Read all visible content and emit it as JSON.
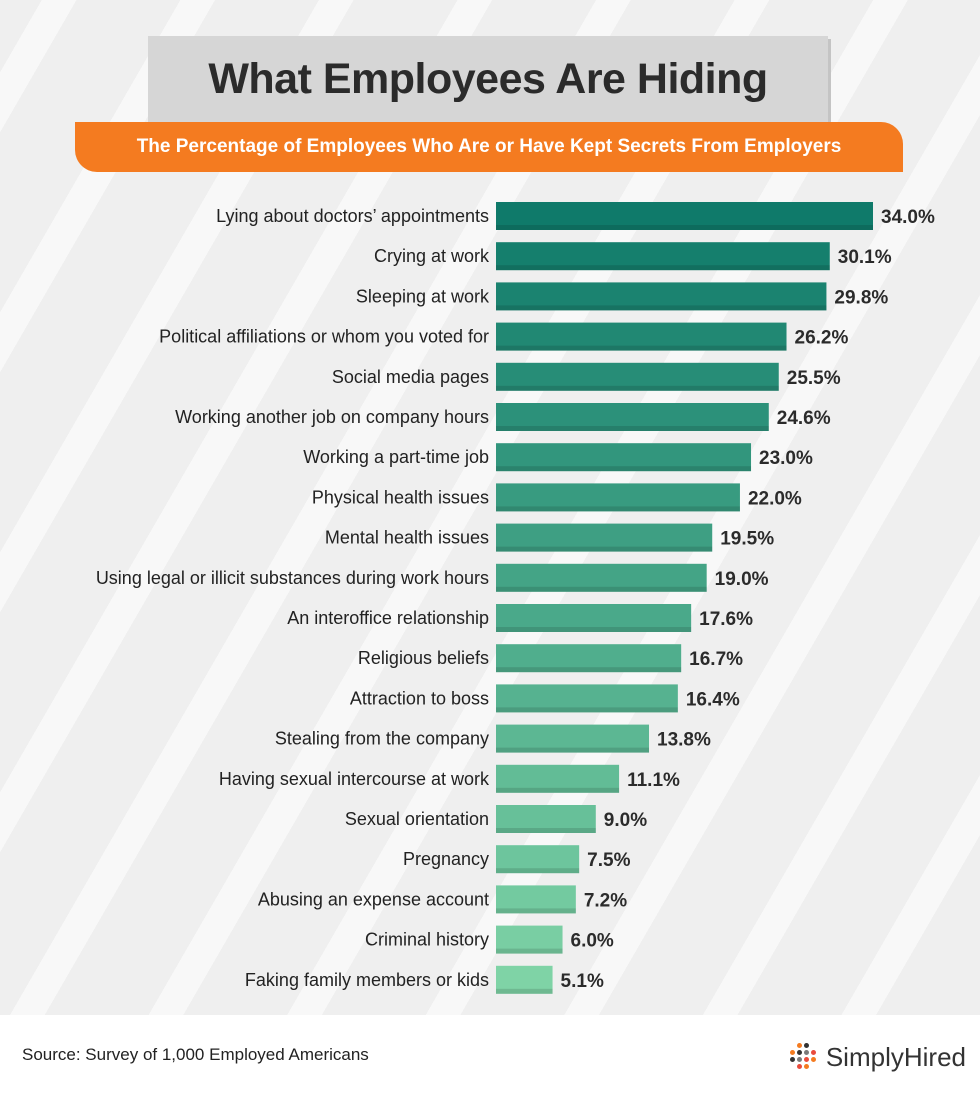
{
  "title": "What Employees Are Hiding",
  "subtitle": "The Percentage of Employees Who Are or Have Kept Secrets From Employers",
  "source": "Source: Survey of 1,000 Employed Americans",
  "logo_text": "SimplyHired",
  "logo_icon": "simplyhired-dots-icon",
  "colors": {
    "title_bg": "#d6d6d6",
    "subtitle_bg": "#f47b20",
    "bar_dark": "#0f7a6a",
    "bar_light": "#7fd3a6"
  },
  "chart_data": {
    "type": "bar",
    "orientation": "horizontal",
    "title": "What Employees Are Hiding",
    "subtitle": "The Percentage of Employees Who Are or Have Kept Secrets From Employers",
    "categories": [
      "Lying about doctors’ appointments",
      "Crying at work",
      "Sleeping at work",
      "Political affiliations or whom you voted for",
      "Social media pages",
      "Working another job on company hours",
      "Working a part-time job",
      "Physical health issues",
      "Mental health issues",
      "Using legal or illicit substances during work hours",
      "An interoffice relationship",
      "Religious beliefs",
      "Attraction to boss",
      "Stealing from the company",
      "Having sexual intercourse at work",
      "Sexual orientation",
      "Pregnancy",
      "Abusing an expense account",
      "Criminal history",
      "Faking family members or kids"
    ],
    "values": [
      34.0,
      30.1,
      29.8,
      26.2,
      25.5,
      24.6,
      23.0,
      22.0,
      19.5,
      19.0,
      17.6,
      16.7,
      16.4,
      13.8,
      11.1,
      9.0,
      7.5,
      7.2,
      6.0,
      5.1
    ],
    "value_labels": [
      "34.0%",
      "30.1%",
      "29.8%",
      "26.2%",
      "25.5%",
      "24.6%",
      "23.0%",
      "22.0%",
      "19.5%",
      "19.0%",
      "17.6%",
      "16.7%",
      "16.4%",
      "13.8%",
      "11.1%",
      "9.0%",
      "7.5%",
      "7.2%",
      "6.0%",
      "5.1%"
    ],
    "xlim": [
      0,
      34
    ],
    "grid": false,
    "legend": "none"
  }
}
